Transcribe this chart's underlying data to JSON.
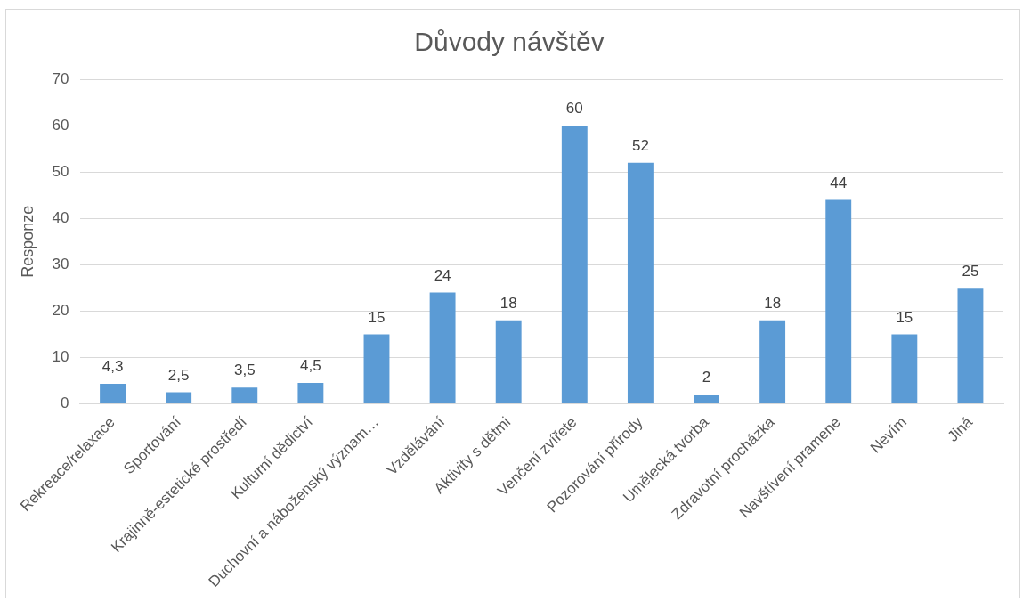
{
  "chart_data": {
    "type": "bar",
    "title": "Důvody návštěv",
    "ylabel": "Responze",
    "categories": [
      "Rekreace/relaxace",
      "Sportování",
      "Krajinně-estetické prostředí",
      "Kulturní dědictví",
      "Duchovní a náboženský význam…",
      "Vzdělávání",
      "Aktivity s dětmi",
      "Venčení zvířete",
      "Pozorování přírody",
      "Umělecká tvorba",
      "Zdravotní procházka",
      "Navštívení pramene",
      "Nevím",
      "Jiná"
    ],
    "values": [
      4.3,
      2.5,
      3.5,
      4.5,
      15,
      24,
      18,
      60,
      52,
      2,
      18,
      44,
      15,
      25
    ],
    "value_labels": [
      "4,3",
      "2,5",
      "3,5",
      "4,5",
      "15",
      "24",
      "18",
      "60",
      "52",
      "2",
      "18",
      "44",
      "15",
      "25"
    ],
    "color": "#5b9bd5",
    "ylim": [
      0,
      70
    ],
    "yticks": [
      0,
      10,
      20,
      30,
      40,
      50,
      60,
      70
    ],
    "grid": "y",
    "legend": false
  }
}
